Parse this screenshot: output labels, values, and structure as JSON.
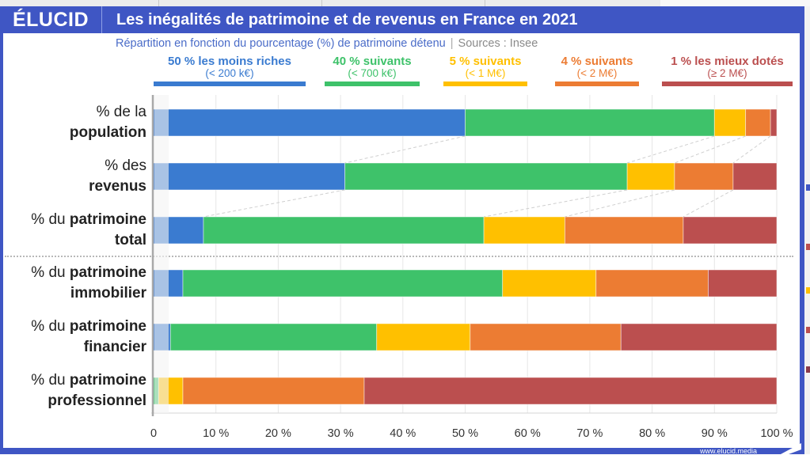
{
  "header": {
    "logo": "ÉLUCID",
    "title": "Les inégalités de patrimoine et de revenus en France en 2021"
  },
  "subtitle": {
    "text": "Répartition en fonction du pourcentage (%) de patrimoine détenu",
    "separator": "|",
    "source": "Sources : Insee"
  },
  "footer": {
    "url": "www.elucid.media"
  },
  "colors": {
    "brand": "#3f56c4",
    "blue": "#3a7bd0",
    "green": "#3ec26a",
    "yellow": "#ffc000",
    "orange": "#ec7c33",
    "red": "#bb4f4f"
  },
  "chart_data": {
    "type": "bar",
    "orientation": "horizontal",
    "stacked": true,
    "title": "Les inégalités de patrimoine et de revenus en France en 2021",
    "subtitle": "Répartition en fonction du pourcentage (%) de patrimoine détenu | Sources : Insee",
    "xlabel": "",
    "ylabel": "",
    "xlim": [
      0,
      100
    ],
    "x_ticks": [
      "0",
      "10 %",
      "20 %",
      "30 %",
      "40 %",
      "50 %",
      "60 %",
      "70 %",
      "80 %",
      "90 %",
      "100 %"
    ],
    "grid": true,
    "legend_position": "top",
    "categories": [
      {
        "prefix": "% de la",
        "bold": "population",
        "layout": "two-line"
      },
      {
        "prefix": "% des",
        "bold": "revenus",
        "layout": "two-line"
      },
      {
        "prefix": "% du",
        "bold": "patrimoine",
        "bold2": "total",
        "layout": "inline"
      },
      {
        "prefix": "% du",
        "bold": "patrimoine",
        "bold2": "immobilier",
        "layout": "inline"
      },
      {
        "prefix": "% du",
        "bold": "patrimoine",
        "bold2": "financier",
        "layout": "inline"
      },
      {
        "prefix": "% du",
        "bold": "patrimoine",
        "bold2": "professionnel",
        "layout": "inline"
      }
    ],
    "series": [
      {
        "name": "50 % les moins riches",
        "sub": "(< 200 k€)",
        "color": "#3a7bd0",
        "values": [
          50,
          30.7,
          8,
          4.7,
          2.7,
          0
        ]
      },
      {
        "name": "40 % suivants",
        "sub": "(< 700 k€)",
        "color": "#3ec26a",
        "values": [
          40,
          45.3,
          45,
          51.3,
          33.1,
          0.8
        ]
      },
      {
        "name": "5 % suivants",
        "sub": "(< 1 M€)",
        "color": "#ffc000",
        "values": [
          5,
          7.6,
          13,
          15,
          15,
          3.9
        ]
      },
      {
        "name": "4 % suivants",
        "sub": "(< 2 M€)",
        "color": "#ec7c33",
        "values": [
          4,
          9.4,
          19,
          18,
          24.2,
          29.1
        ]
      },
      {
        "name": "1 % les mieux dotés",
        "sub": "(≥ 2 M€)",
        "color": "#bb4f4f",
        "values": [
          1,
          7,
          15,
          11,
          25,
          66.2
        ]
      }
    ],
    "connector_lines": "dashed lines join segment boundaries of the first three bars",
    "separator_after_category_index": 2
  }
}
